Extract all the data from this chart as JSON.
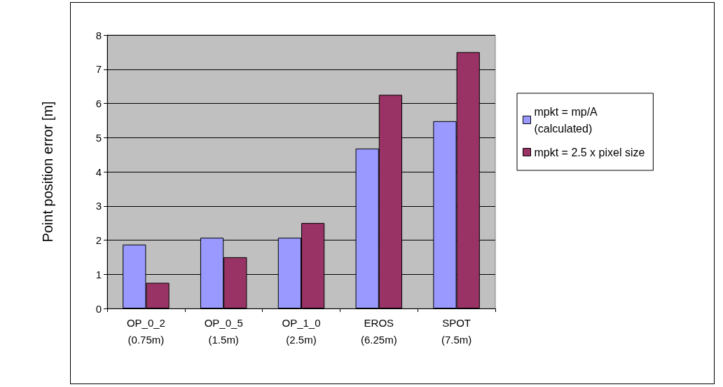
{
  "chart_data": {
    "type": "bar",
    "ylabel": "Point position error [m]",
    "categories": [
      "OP_0_2\n(0.75m)",
      "OP_0_5\n(1.5m)",
      "OP_1_0\n(2.5m)",
      "EROS\n(6.25m)",
      "SPOT\n(7.5m)"
    ],
    "series": [
      {
        "name": "mpkt = mp/A\n(calculated)",
        "color": "#9999ff",
        "values": [
          1.87,
          2.07,
          2.07,
          4.68,
          5.48
        ]
      },
      {
        "name": "mpkt = 2.5 x pixel size",
        "color": "#993366",
        "values": [
          0.75,
          1.5,
          2.5,
          6.25,
          7.5
        ]
      }
    ],
    "ylim": [
      0,
      8
    ],
    "yticks": [
      0,
      1,
      2,
      3,
      4,
      5,
      6,
      7,
      8
    ],
    "grid": "y",
    "legend": "right"
  }
}
